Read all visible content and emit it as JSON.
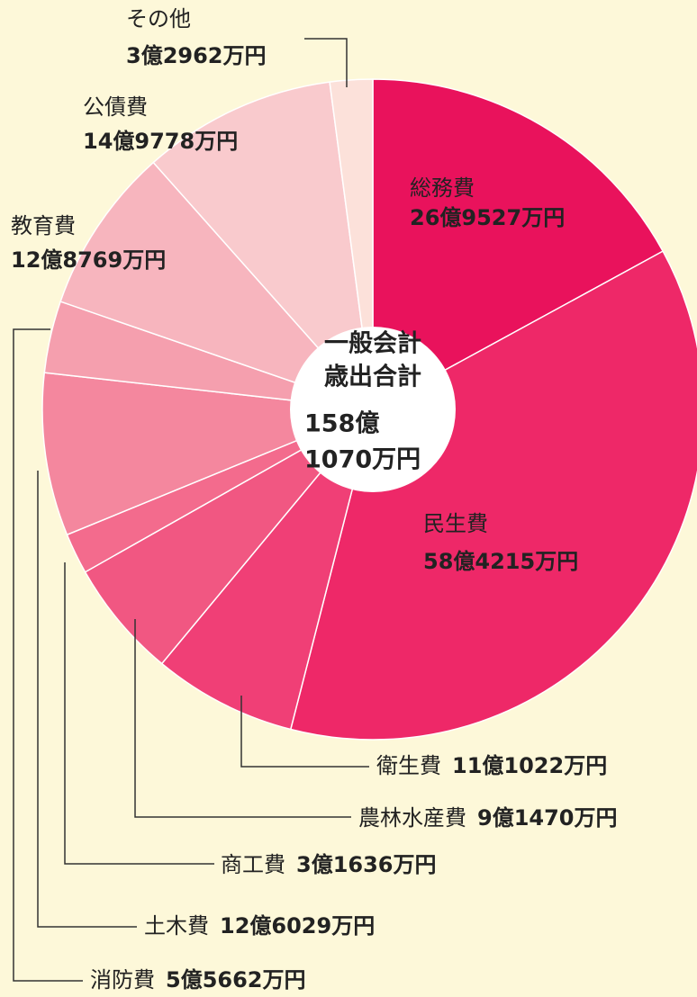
{
  "chart_data": {
    "type": "donut",
    "categories": [
      "総務費",
      "民生費",
      "衛生費",
      "農林水産費",
      "商工費",
      "土木費",
      "消防費",
      "教育費",
      "公債費",
      "その他"
    ],
    "values": [
      269527,
      584215,
      111022,
      91470,
      31636,
      126029,
      55662,
      128769,
      149778,
      32962
    ],
    "value_labels": [
      "26億9527万円",
      "58億4215万円",
      "11億1022万円",
      "9億1470万円",
      "3億1636万円",
      "12億6029万円",
      "5億5662万円",
      "12億8769万円",
      "14億9778万円",
      "3億2962万円"
    ],
    "colors": [
      "#e9125c",
      "#ee2868",
      "#f03f76",
      "#f15782",
      "#f36b8d",
      "#f4879e",
      "#f59fae",
      "#f7b5be",
      "#f9cacd",
      "#fce1da"
    ],
    "center_text": [
      "一般会計",
      "歳出合計",
      "158億",
      "1070万円"
    ]
  }
}
